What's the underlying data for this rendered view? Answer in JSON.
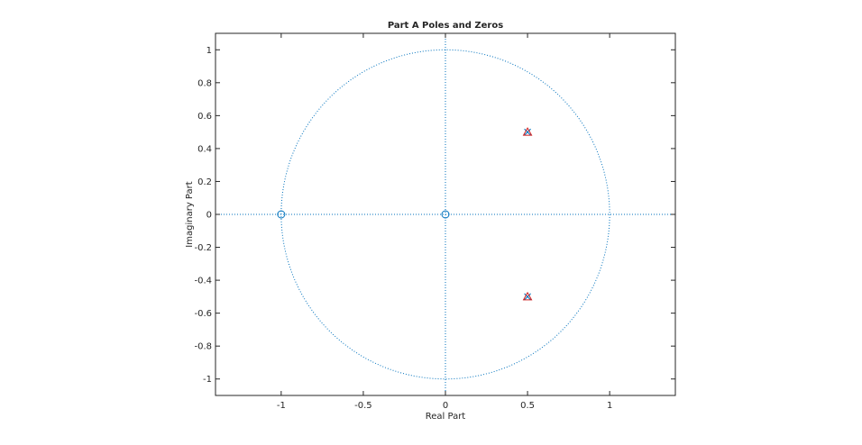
{
  "chart_data": {
    "type": "scatter",
    "title": "Part A Poles and Zeros",
    "xlabel": "Real Part",
    "ylabel": "Imaginary Part",
    "xlim": [
      -1.4,
      1.4
    ],
    "ylim": [
      -1.1,
      1.1
    ],
    "xticks": [
      -1,
      -0.5,
      0,
      0.5,
      1
    ],
    "xtick_labels": [
      "-1",
      "-0.5",
      "0",
      "0.5",
      "1"
    ],
    "yticks": [
      -1,
      -0.8,
      -0.6,
      -0.4,
      -0.2,
      0,
      0.2,
      0.4,
      0.6,
      0.8,
      1
    ],
    "ytick_labels": [
      "-1",
      "-0.8",
      "-0.6",
      "-0.4",
      "-0.2",
      "0",
      "0.2",
      "0.4",
      "0.6",
      "0.8",
      "1"
    ],
    "grid": false,
    "unit_circle": true,
    "series": [
      {
        "marker": "circle",
        "color": "#0072bd",
        "points": [
          {
            "x": -1,
            "y": 0
          },
          {
            "x": 0,
            "y": 0
          }
        ]
      },
      {
        "marker": "x",
        "color": "#0072bd",
        "points": [
          {
            "x": 0.5,
            "y": 0.5
          },
          {
            "x": 0.5,
            "y": -0.5
          }
        ]
      },
      {
        "marker": "triangle",
        "color": "#d01c1c",
        "points": [
          {
            "x": 0.5,
            "y": 0.5
          },
          {
            "x": 0.5,
            "y": -0.5
          }
        ]
      }
    ],
    "colors": {
      "reference": "#0072bd",
      "axes": "#262626"
    }
  }
}
